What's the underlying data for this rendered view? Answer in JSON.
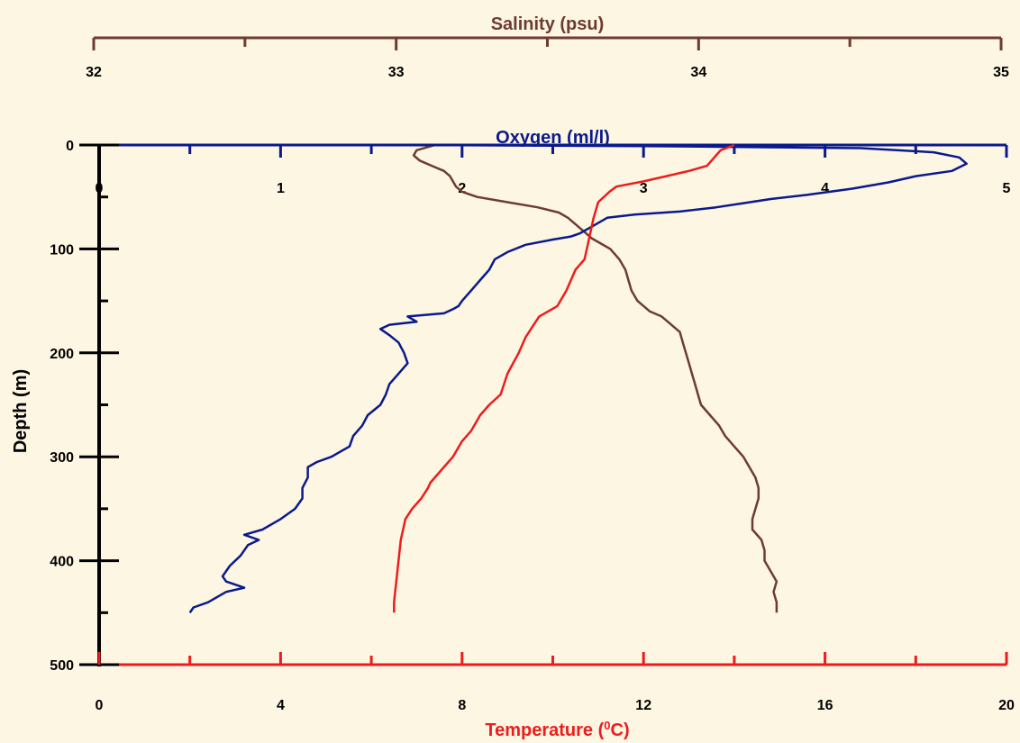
{
  "chart_data": {
    "type": "line",
    "ylabel": "Depth (m)",
    "ylim": [
      0,
      500
    ],
    "y_inverted": true,
    "y_ticks": [
      0,
      100,
      200,
      300,
      400,
      500
    ],
    "y_tick_labels": [
      "0",
      "100",
      "200",
      "300",
      "400",
      "500"
    ],
    "grid": false,
    "legend": "none",
    "axes": {
      "salinity": {
        "label": "Salinity (psu)",
        "position": "top",
        "color": "#6e3b32",
        "range": [
          32,
          35
        ],
        "ticks": [
          32,
          33,
          34,
          35
        ],
        "tick_labels": [
          "32",
          "33",
          "34",
          "35"
        ]
      },
      "oxygen": {
        "label": "Oxygen (ml/l)",
        "position": "top-inner",
        "color": "#0a1a8c",
        "range": [
          0,
          5
        ],
        "ticks": [
          0,
          1,
          2,
          3,
          4,
          5
        ],
        "tick_labels": [
          "0",
          "1",
          "2",
          "3",
          "4",
          "5"
        ]
      },
      "temperature": {
        "label": "Temperature (",
        "label_sup": "0",
        "label_suffix": "C)",
        "position": "bottom",
        "color": "#ee1c1c",
        "range": [
          0,
          20
        ],
        "ticks": [
          0,
          4,
          8,
          12,
          16,
          20
        ],
        "tick_labels": [
          "0",
          "4",
          "8",
          "12",
          "16",
          "20"
        ]
      }
    },
    "series": [
      {
        "axis": "salinity",
        "color": "#6e3b32",
        "points": [
          [
            33.11,
            0
          ],
          [
            33.05,
            5
          ],
          [
            33.04,
            10
          ],
          [
            33.06,
            15
          ],
          [
            33.1,
            20
          ],
          [
            33.14,
            25
          ],
          [
            33.16,
            30
          ],
          [
            33.17,
            35
          ],
          [
            33.18,
            40
          ],
          [
            33.2,
            45
          ],
          [
            33.25,
            50
          ],
          [
            33.35,
            55
          ],
          [
            33.45,
            60
          ],
          [
            33.52,
            65
          ],
          [
            33.55,
            70
          ],
          [
            33.57,
            75
          ],
          [
            33.59,
            80
          ],
          [
            33.61,
            85
          ],
          [
            33.63,
            90
          ],
          [
            33.66,
            95
          ],
          [
            33.69,
            100
          ],
          [
            33.72,
            110
          ],
          [
            33.74,
            120
          ],
          [
            33.75,
            130
          ],
          [
            33.76,
            140
          ],
          [
            33.78,
            150
          ],
          [
            33.82,
            160
          ],
          [
            33.86,
            165
          ],
          [
            33.88,
            170
          ],
          [
            33.9,
            175
          ],
          [
            33.92,
            180
          ],
          [
            33.93,
            190
          ],
          [
            33.94,
            200
          ],
          [
            33.95,
            210
          ],
          [
            33.96,
            220
          ],
          [
            33.97,
            230
          ],
          [
            33.98,
            240
          ],
          [
            33.99,
            250
          ],
          [
            34.02,
            260
          ],
          [
            34.05,
            270
          ],
          [
            34.07,
            280
          ],
          [
            34.1,
            290
          ],
          [
            34.13,
            300
          ],
          [
            34.15,
            310
          ],
          [
            34.17,
            320
          ],
          [
            34.18,
            330
          ],
          [
            34.18,
            340
          ],
          [
            34.17,
            350
          ],
          [
            34.16,
            360
          ],
          [
            34.16,
            370
          ],
          [
            34.19,
            380
          ],
          [
            34.2,
            390
          ],
          [
            34.2,
            400
          ],
          [
            34.22,
            410
          ],
          [
            34.24,
            420
          ],
          [
            34.23,
            430
          ],
          [
            34.24,
            440
          ],
          [
            34.24,
            450
          ]
        ]
      },
      {
        "axis": "oxygen",
        "color": "#0a1a8c",
        "points": [
          [
            1.7,
            0
          ],
          [
            3.0,
            1
          ],
          [
            4.2,
            3
          ],
          [
            4.6,
            7
          ],
          [
            4.74,
            12
          ],
          [
            4.78,
            18
          ],
          [
            4.7,
            25
          ],
          [
            4.5,
            30
          ],
          [
            4.35,
            36
          ],
          [
            4.15,
            42
          ],
          [
            3.9,
            48
          ],
          [
            3.7,
            52
          ],
          [
            3.55,
            56
          ],
          [
            3.4,
            60
          ],
          [
            3.2,
            64
          ],
          [
            2.95,
            67
          ],
          [
            2.8,
            70
          ],
          [
            2.75,
            75
          ],
          [
            2.7,
            80
          ],
          [
            2.65,
            85
          ],
          [
            2.6,
            88
          ],
          [
            2.5,
            91
          ],
          [
            2.35,
            96
          ],
          [
            2.25,
            103
          ],
          [
            2.18,
            110
          ],
          [
            2.15,
            120
          ],
          [
            2.1,
            130
          ],
          [
            2.05,
            140
          ],
          [
            2.0,
            150
          ],
          [
            1.98,
            155
          ],
          [
            1.95,
            158
          ],
          [
            1.9,
            162
          ],
          [
            1.7,
            165
          ],
          [
            1.75,
            170
          ],
          [
            1.6,
            173
          ],
          [
            1.55,
            177
          ],
          [
            1.6,
            183
          ],
          [
            1.65,
            190
          ],
          [
            1.68,
            200
          ],
          [
            1.7,
            210
          ],
          [
            1.65,
            220
          ],
          [
            1.6,
            230
          ],
          [
            1.58,
            240
          ],
          [
            1.55,
            250
          ],
          [
            1.48,
            260
          ],
          [
            1.45,
            270
          ],
          [
            1.4,
            280
          ],
          [
            1.38,
            290
          ],
          [
            1.28,
            300
          ],
          [
            1.2,
            305
          ],
          [
            1.15,
            310
          ],
          [
            1.15,
            320
          ],
          [
            1.12,
            330
          ],
          [
            1.12,
            340
          ],
          [
            1.08,
            350
          ],
          [
            1.0,
            360
          ],
          [
            0.95,
            365
          ],
          [
            0.9,
            370
          ],
          [
            0.8,
            375
          ],
          [
            0.88,
            380
          ],
          [
            0.82,
            385
          ],
          [
            0.78,
            395
          ],
          [
            0.72,
            405
          ],
          [
            0.68,
            415
          ],
          [
            0.7,
            420
          ],
          [
            0.8,
            426
          ],
          [
            0.7,
            430
          ],
          [
            0.6,
            440
          ],
          [
            0.52,
            445
          ],
          [
            0.5,
            450
          ]
        ]
      },
      {
        "axis": "temperature",
        "color": "#ee1c1c",
        "points": [
          [
            14.0,
            0
          ],
          [
            13.7,
            5
          ],
          [
            13.6,
            10
          ],
          [
            13.5,
            15
          ],
          [
            13.4,
            20
          ],
          [
            13.0,
            25
          ],
          [
            12.5,
            30
          ],
          [
            12.0,
            35
          ],
          [
            11.4,
            40
          ],
          [
            11.25,
            45
          ],
          [
            11.0,
            55
          ],
          [
            10.9,
            70
          ],
          [
            10.85,
            80
          ],
          [
            10.75,
            100
          ],
          [
            10.7,
            110
          ],
          [
            10.5,
            120
          ],
          [
            10.3,
            140
          ],
          [
            10.1,
            155
          ],
          [
            9.7,
            165
          ],
          [
            9.55,
            175
          ],
          [
            9.4,
            185
          ],
          [
            9.25,
            200
          ],
          [
            9.0,
            220
          ],
          [
            8.85,
            240
          ],
          [
            8.6,
            250
          ],
          [
            8.4,
            260
          ],
          [
            8.2,
            275
          ],
          [
            8.0,
            285
          ],
          [
            7.8,
            300
          ],
          [
            7.5,
            315
          ],
          [
            7.3,
            325
          ],
          [
            7.25,
            330
          ],
          [
            7.1,
            340
          ],
          [
            6.9,
            350
          ],
          [
            6.75,
            360
          ],
          [
            6.65,
            380
          ],
          [
            6.6,
            400
          ],
          [
            6.55,
            420
          ],
          [
            6.5,
            440
          ],
          [
            6.5,
            450
          ]
        ]
      }
    ]
  }
}
